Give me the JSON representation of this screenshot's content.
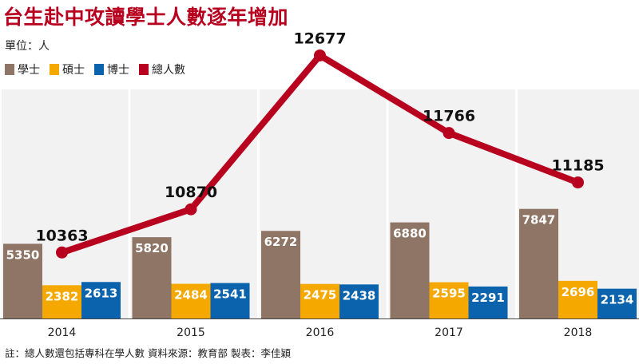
{
  "title": "台生赴中攻讀學士人數逐年增加",
  "unit_label": "單位：人",
  "footnote": "註：總人數還包括專科在學人數  資料來源：教育部  製表：李佳穎",
  "colors": {
    "bachelor": "#8e7565",
    "master": "#f5a800",
    "doctor": "#0a63ac",
    "total": "#b8001f"
  },
  "chart_data": {
    "type": "bar",
    "title": "台生赴中攻讀學士人數逐年增加",
    "xlabel": "",
    "ylabel": "單位：人",
    "categories": [
      "2014",
      "2015",
      "2016",
      "2017",
      "2018"
    ],
    "series": [
      {
        "name": "學士",
        "values": [
          5350,
          5820,
          6272,
          6880,
          7847
        ]
      },
      {
        "name": "碩士",
        "values": [
          2382,
          2484,
          2475,
          2595,
          2696
        ]
      },
      {
        "name": "博士",
        "values": [
          2613,
          2541,
          2438,
          2291,
          2134
        ]
      }
    ],
    "line_series": {
      "name": "總人數",
      "values": [
        10363,
        10870,
        12677,
        11766,
        11185
      ]
    },
    "legend": [
      "學士",
      "碩士",
      "博士",
      "總人數"
    ],
    "legend_position": "top-left"
  }
}
